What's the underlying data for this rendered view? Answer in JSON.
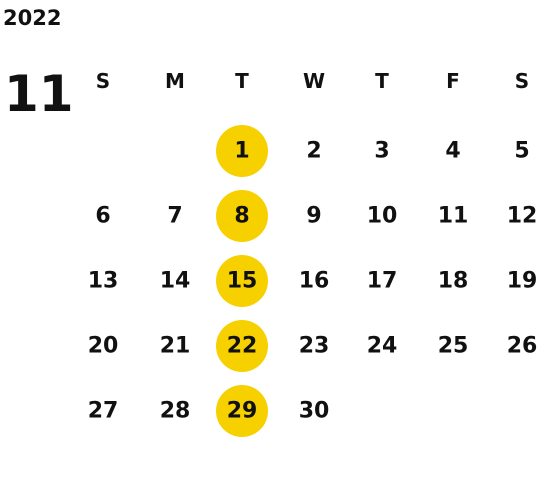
{
  "year": "2022",
  "month": "11",
  "weekdays": [
    "S",
    "M",
    "T",
    "W",
    "T",
    "F",
    "S"
  ],
  "weeks": [
    [
      null,
      null,
      "1",
      "2",
      "3",
      "4",
      "5"
    ],
    [
      "6",
      "7",
      "8",
      "9",
      "10",
      "11",
      "12"
    ],
    [
      "13",
      "14",
      "15",
      "16",
      "17",
      "18",
      "19"
    ],
    [
      "20",
      "21",
      "22",
      "23",
      "24",
      "25",
      "26"
    ],
    [
      "27",
      "28",
      "29",
      "30",
      null,
      null,
      null
    ]
  ]
}
